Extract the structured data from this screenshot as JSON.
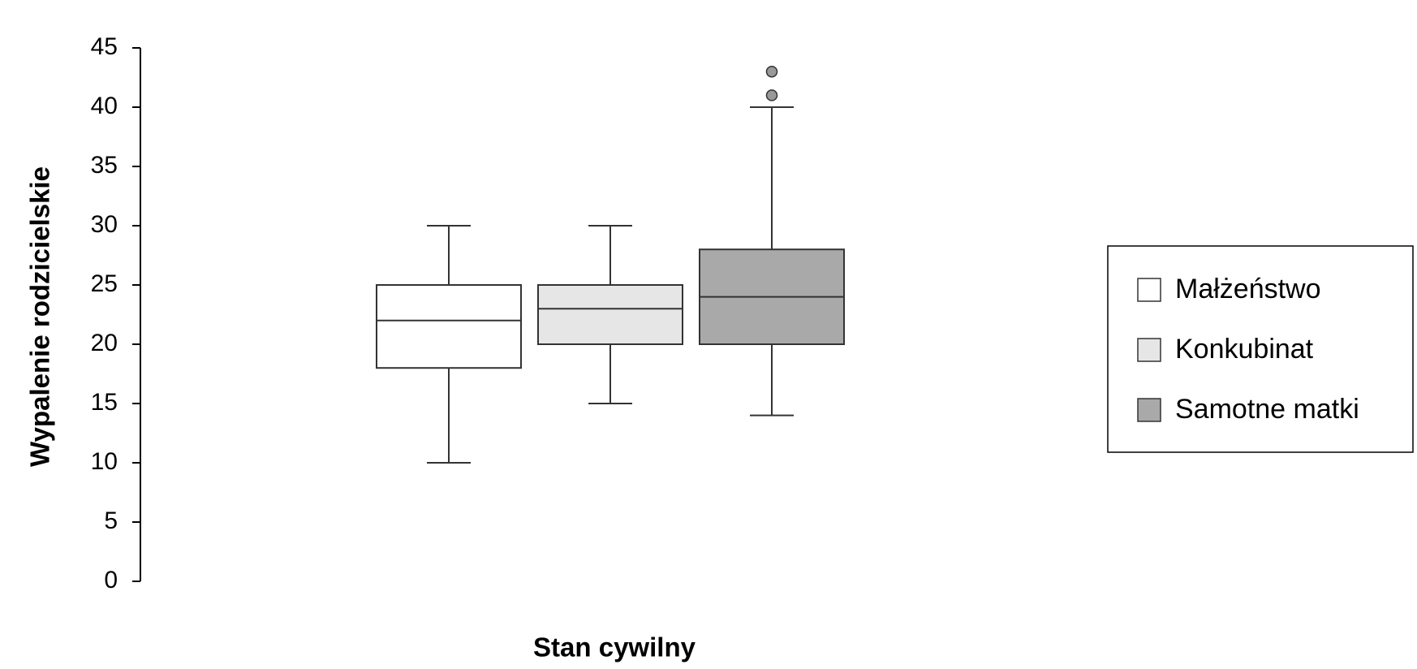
{
  "chart_data": {
    "type": "box",
    "xlabel": "Stan cywilny",
    "ylabel": "Wypalenie rodzicielskie",
    "ylim": [
      0,
      45
    ],
    "yticks": [
      0,
      5,
      10,
      15,
      20,
      25,
      30,
      35,
      40,
      45
    ],
    "series": [
      {
        "name": "Małżeństwo",
        "color": "#ffffff",
        "whislo": 10,
        "q1": 18,
        "med": 22,
        "q3": 25,
        "whishi": 30,
        "outliers": []
      },
      {
        "name": "Konkubinat",
        "color": "#e6e6e6",
        "whislo": 15,
        "q1": 20,
        "med": 23,
        "q3": 25,
        "whishi": 30,
        "outliers": []
      },
      {
        "name": "Samotne matki",
        "color": "#a9a9a9",
        "whislo": 14,
        "q1": 20,
        "med": 24,
        "q3": 28,
        "whishi": 40,
        "outliers": [
          41,
          43
        ]
      }
    ]
  }
}
